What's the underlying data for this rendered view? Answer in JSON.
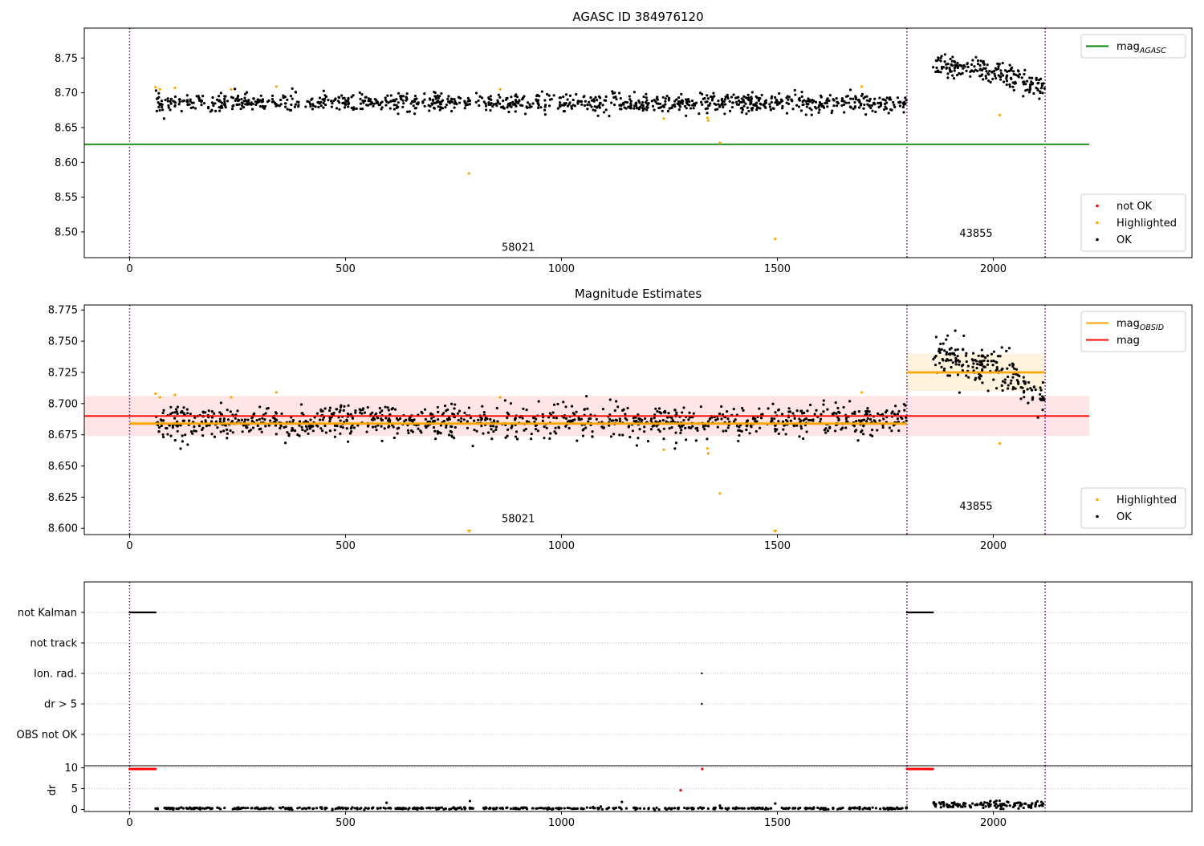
{
  "chart_data": [
    {
      "type": "scatter",
      "title": "AGASC ID 384976120",
      "xlabel": "",
      "ylabel": "",
      "xlim": [
        -105,
        2460
      ],
      "ylim": [
        8.463,
        8.793
      ],
      "xticks": [
        0,
        500,
        1000,
        1500,
        2000
      ],
      "xtick_labels": [
        "0",
        "500",
        "1000",
        "1500",
        "2000"
      ],
      "yticks": [
        8.5,
        8.55,
        8.6,
        8.65,
        8.7,
        8.75
      ],
      "ytick_labels": [
        "8.50",
        "8.55",
        "8.60",
        "8.65",
        "8.70",
        "8.75"
      ],
      "vlines": [
        0,
        1800,
        2120
      ],
      "hlines": [
        {
          "name": "mag$_{AGASC}$",
          "value": 8.626,
          "x_range": [
            -105,
            2222
          ],
          "color": "#008000"
        }
      ],
      "obsid_labels": [
        {
          "text": "58021",
          "x": 900,
          "y": 8.473
        },
        {
          "text": "43855",
          "x": 1960,
          "y": 8.493
        }
      ],
      "series": [
        {
          "name": "OK",
          "color": "#000000",
          "segments": [
            {
              "x_range": [
                60,
                1800
              ],
              "mean": 8.6855,
              "scatter": 0.0065,
              "n": 1050
            },
            {
              "x_range": [
                1860,
                2120
              ],
              "trend": [
                [
                  1860,
                  8.74
                ],
                [
                  1980,
                  8.732
                ],
                [
                  2120,
                  8.707
                ]
              ],
              "scatter": 0.008,
              "n": 200
            }
          ]
        },
        {
          "name": "Highlighted",
          "color": "#FFA500",
          "points": [
            [
              60,
              8.708
            ],
            [
              70,
              8.705
            ],
            [
              105,
              8.707
            ],
            [
              235,
              8.705
            ],
            [
              340,
              8.709
            ],
            [
              786,
              8.584
            ],
            [
              858,
              8.705
            ],
            [
              1237,
              8.663
            ],
            [
              1338,
              8.664
            ],
            [
              1340,
              8.66
            ],
            [
              1367,
              8.628
            ],
            [
              1495,
              8.49
            ],
            [
              1695,
              8.709
            ],
            [
              2015,
              8.668
            ]
          ]
        },
        {
          "name": "not OK",
          "color": "#FF0000",
          "points": []
        }
      ],
      "legends": [
        {
          "position": "upper right",
          "entries": [
            {
              "label": "mag$_{AGASC}$",
              "color": "#008000",
              "kind": "line"
            }
          ]
        },
        {
          "position": "lower right",
          "entries": [
            {
              "label": "not OK",
              "color": "#FF0000",
              "kind": "dot"
            },
            {
              "label": "Highlighted",
              "color": "#FFA500",
              "kind": "dot"
            },
            {
              "label": "OK",
              "color": "#000000",
              "kind": "dot"
            }
          ]
        }
      ]
    },
    {
      "type": "scatter",
      "title": "Magnitude Estimates",
      "xlabel": "",
      "ylabel": "",
      "xlim": [
        -105,
        2460
      ],
      "ylim": [
        8.595,
        8.779
      ],
      "xticks": [
        0,
        500,
        1000,
        1500,
        2000
      ],
      "xtick_labels": [
        "0",
        "500",
        "1000",
        "1500",
        "2000"
      ],
      "yticks": [
        8.6,
        8.625,
        8.65,
        8.675,
        8.7,
        8.725,
        8.75,
        8.775
      ],
      "ytick_labels": [
        "8.600",
        "8.625",
        "8.650",
        "8.675",
        "8.700",
        "8.725",
        "8.750",
        "8.775"
      ],
      "vlines": [
        0,
        1800,
        2120
      ],
      "bands": [
        {
          "name": "mag",
          "x_range": [
            -105,
            2222
          ],
          "center": 8.69,
          "lower": 8.674,
          "upper": 8.706,
          "color": "#FF0000"
        },
        {
          "name": "mag$_{OBSID}$",
          "x_range": [
            0,
            1800
          ],
          "center": 8.684,
          "lower": 8.682,
          "upper": 8.686,
          "color": "#FFA500"
        },
        {
          "name": "mag$_{OBSID}$",
          "x_range": [
            1800,
            2120
          ],
          "center": 8.725,
          "lower": 8.71,
          "upper": 8.74,
          "color": "#FFA500"
        }
      ],
      "obsid_labels": [
        {
          "text": "58021",
          "x": 900,
          "y": 8.605
        },
        {
          "text": "43855",
          "x": 1960,
          "y": 8.615
        }
      ],
      "series": [
        {
          "name": "OK",
          "color": "#000000",
          "segments": [
            {
              "x_range": [
                60,
                1800
              ],
              "mean": 8.6855,
              "scatter": 0.0065,
              "n": 1050
            },
            {
              "x_range": [
                1860,
                2120
              ],
              "trend": [
                [
                  1860,
                  8.74
                ],
                [
                  1980,
                  8.732
                ],
                [
                  2120,
                  8.707
                ]
              ],
              "scatter": 0.008,
              "n": 200
            }
          ]
        },
        {
          "name": "Highlighted",
          "color": "#FFA500",
          "points": [
            [
              60,
              8.708
            ],
            [
              70,
              8.705
            ],
            [
              105,
              8.707
            ],
            [
              235,
              8.705
            ],
            [
              340,
              8.709
            ],
            [
              858,
              8.705
            ],
            [
              1237,
              8.663
            ],
            [
              1338,
              8.664
            ],
            [
              1340,
              8.66
            ],
            [
              1367,
              8.628
            ],
            [
              1695,
              8.709
            ],
            [
              2015,
              8.668
            ]
          ],
          "clipped_below": [
            786,
            1495
          ]
        }
      ],
      "legends": [
        {
          "position": "upper right",
          "entries": [
            {
              "label": "mag$_{OBSID}$",
              "color": "#FFA500",
              "kind": "line"
            },
            {
              "label": "mag",
              "color": "#FF0000",
              "kind": "line"
            }
          ]
        },
        {
          "position": "lower right",
          "entries": [
            {
              "label": "Highlighted",
              "color": "#FFA500",
              "kind": "dot"
            },
            {
              "label": "OK",
              "color": "#000000",
              "kind": "dot"
            }
          ]
        }
      ]
    },
    {
      "type": "scatter",
      "title": "",
      "xlabel": "",
      "ylabel": "",
      "xlim": [
        -105,
        2460
      ],
      "categories": [
        "not Kalman",
        "not track",
        "Ion. rad.",
        "dr > 5",
        "OBS not OK"
      ],
      "vlines": [
        0,
        1800,
        2120
      ],
      "flags": [
        {
          "category": "not Kalman",
          "x_ranges": [
            [
              0,
              60
            ],
            [
              1800,
              1860
            ]
          ]
        },
        {
          "category": "not track",
          "x_ranges": []
        },
        {
          "category": "Ion. rad.",
          "points": [
            1325
          ]
        },
        {
          "category": "dr > 5",
          "points": [
            1325
          ]
        },
        {
          "category": "OBS not OK",
          "x_ranges": []
        }
      ]
    },
    {
      "type": "scatter",
      "title": "",
      "xlabel": "",
      "ylabel": "dr",
      "xlim": [
        -105,
        2460
      ],
      "ylim": [
        -0.5,
        10.5
      ],
      "yticks": [
        0,
        5,
        10
      ],
      "ytick_labels": [
        "0",
        "5",
        "10"
      ],
      "vlines": [
        0,
        1800,
        2120
      ],
      "xticks": [
        0,
        500,
        1000,
        1500,
        2000
      ],
      "xtick_labels": [
        "0",
        "500",
        "1000",
        "1500",
        "2000"
      ],
      "series": [
        {
          "name": "dr",
          "color": "#000000",
          "segments": [
            {
              "x_range": [
                60,
                1800
              ],
              "mean": 0.25,
              "scatter": 0.12,
              "n": 520
            },
            {
              "x_range": [
                1860,
                2120
              ],
              "mean": 1.1,
              "scatter": 0.4,
              "n": 130
            }
          ],
          "points": [
            [
              595,
              1.6
            ],
            [
              788,
              2.0
            ],
            [
              1140,
              1.8
            ],
            [
              1367,
              0.9
            ],
            [
              1495,
              1.4
            ]
          ]
        },
        {
          "name": "dr (not OK)",
          "color": "#FF0000",
          "constant_runs": [
            {
              "x_range": [
                0,
                60
              ],
              "value": 9.7
            },
            {
              "x_range": [
                1800,
                1860
              ],
              "value": 9.7
            }
          ],
          "points": [
            [
              1276,
              4.6
            ],
            [
              1326,
              9.7
            ]
          ]
        }
      ]
    }
  ]
}
